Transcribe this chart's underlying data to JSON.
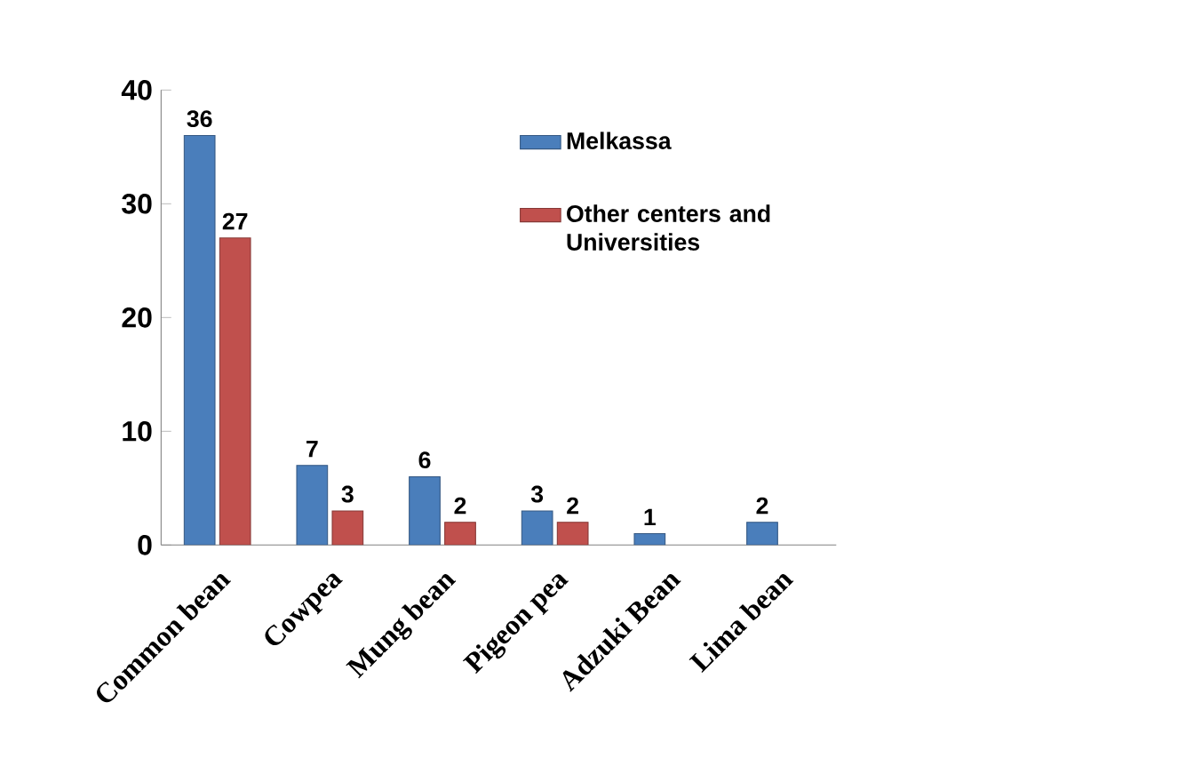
{
  "chart_data": {
    "type": "bar",
    "categories": [
      "Common bean",
      "Cowpea",
      "Mung bean",
      "Pigeon pea",
      "Adzuki Bean",
      "Lima bean"
    ],
    "series": [
      {
        "name": "Melkassa",
        "color": "#4a7ebb",
        "values": [
          36,
          7,
          6,
          3,
          1,
          2
        ]
      },
      {
        "name": "Other centers and Universities",
        "color": "#c0504d",
        "values": [
          27,
          3,
          2,
          2,
          null,
          null
        ]
      }
    ],
    "ylim": [
      0,
      40
    ],
    "yticks": [
      0,
      10,
      20,
      30,
      40
    ],
    "data_labels": true,
    "legend": "top right",
    "grid": false
  }
}
